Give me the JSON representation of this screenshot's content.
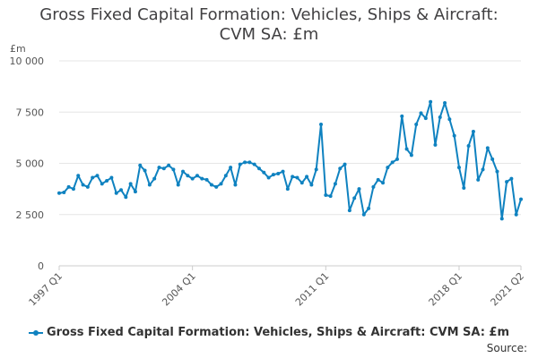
{
  "chart_data": {
    "type": "line",
    "title_lines": [
      "Gross Fixed Capital Formation: Vehicles, Ships & Aircraft:",
      "CVM SA: £m"
    ],
    "unit_label": "£m",
    "ylim": [
      0,
      10000
    ],
    "y_ticks": [
      0,
      2500,
      5000,
      7500,
      10000
    ],
    "y_tick_labels": [
      "0",
      "2 500",
      "5 000",
      "7 500",
      "10 000"
    ],
    "x_tick_labels": [
      "1997 Q1",
      "2004 Q1",
      "2011 Q1",
      "2018 Q1",
      "2021 Q2"
    ],
    "x_tick_indices": [
      0,
      28,
      56,
      84,
      97
    ],
    "grid": true,
    "legend_position": "bottom",
    "source": "Source:",
    "color": "#0f82c0",
    "series": [
      {
        "name": "Gross Fixed Capital Formation: Vehicles, Ships & Aircraft: CVM SA: £m",
        "categories": [
          "1997 Q1",
          "1997 Q2",
          "1997 Q3",
          "1997 Q4",
          "1998 Q1",
          "1998 Q2",
          "1998 Q3",
          "1998 Q4",
          "1999 Q1",
          "1999 Q2",
          "1999 Q3",
          "1999 Q4",
          "2000 Q1",
          "2000 Q2",
          "2000 Q3",
          "2000 Q4",
          "2001 Q1",
          "2001 Q2",
          "2001 Q3",
          "2001 Q4",
          "2002 Q1",
          "2002 Q2",
          "2002 Q3",
          "2002 Q4",
          "2003 Q1",
          "2003 Q2",
          "2003 Q3",
          "2003 Q4",
          "2004 Q1",
          "2004 Q2",
          "2004 Q3",
          "2004 Q4",
          "2005 Q1",
          "2005 Q2",
          "2005 Q3",
          "2005 Q4",
          "2006 Q1",
          "2006 Q2",
          "2006 Q3",
          "2006 Q4",
          "2007 Q1",
          "2007 Q2",
          "2007 Q3",
          "2007 Q4",
          "2008 Q1",
          "2008 Q2",
          "2008 Q3",
          "2008 Q4",
          "2009 Q1",
          "2009 Q2",
          "2009 Q3",
          "2009 Q4",
          "2010 Q1",
          "2010 Q2",
          "2010 Q3",
          "2010 Q4",
          "2011 Q1",
          "2011 Q2",
          "2011 Q3",
          "2011 Q4",
          "2012 Q1",
          "2012 Q2",
          "2012 Q3",
          "2012 Q4",
          "2013 Q1",
          "2013 Q2",
          "2013 Q3",
          "2013 Q4",
          "2014 Q1",
          "2014 Q2",
          "2014 Q3",
          "2014 Q4",
          "2015 Q1",
          "2015 Q2",
          "2015 Q3",
          "2015 Q4",
          "2016 Q1",
          "2016 Q2",
          "2016 Q3",
          "2016 Q4",
          "2017 Q1",
          "2017 Q2",
          "2017 Q3",
          "2017 Q4",
          "2018 Q1",
          "2018 Q2",
          "2018 Q3",
          "2018 Q4",
          "2019 Q1",
          "2019 Q2",
          "2019 Q3",
          "2019 Q4",
          "2020 Q1",
          "2020 Q2",
          "2020 Q3",
          "2020 Q4",
          "2021 Q1",
          "2021 Q2"
        ],
        "values": [
          3550,
          3580,
          3850,
          3750,
          4400,
          3950,
          3850,
          4300,
          4400,
          4000,
          4150,
          4300,
          3550,
          3700,
          3350,
          4000,
          3620,
          4900,
          4650,
          3950,
          4250,
          4800,
          4750,
          4900,
          4700,
          3950,
          4600,
          4400,
          4250,
          4400,
          4250,
          4200,
          3950,
          3850,
          4000,
          4400,
          4800,
          3950,
          4950,
          5050,
          5050,
          4950,
          4750,
          4550,
          4300,
          4450,
          4500,
          4600,
          3750,
          4350,
          4300,
          4050,
          4350,
          3950,
          4700,
          6900,
          3450,
          3400,
          4000,
          4750,
          4950,
          2700,
          3300,
          3750,
          2500,
          2800,
          3850,
          4200,
          4050,
          4800,
          5050,
          5200,
          7300,
          5700,
          5400,
          6900,
          7450,
          7200,
          8000,
          5900,
          7250,
          7950,
          7150,
          6350,
          4800,
          3800,
          5850,
          6550,
          4200,
          4700,
          5750,
          5200,
          4600,
          2300,
          4100,
          4250,
          2500,
          3250
        ]
      }
    ]
  }
}
